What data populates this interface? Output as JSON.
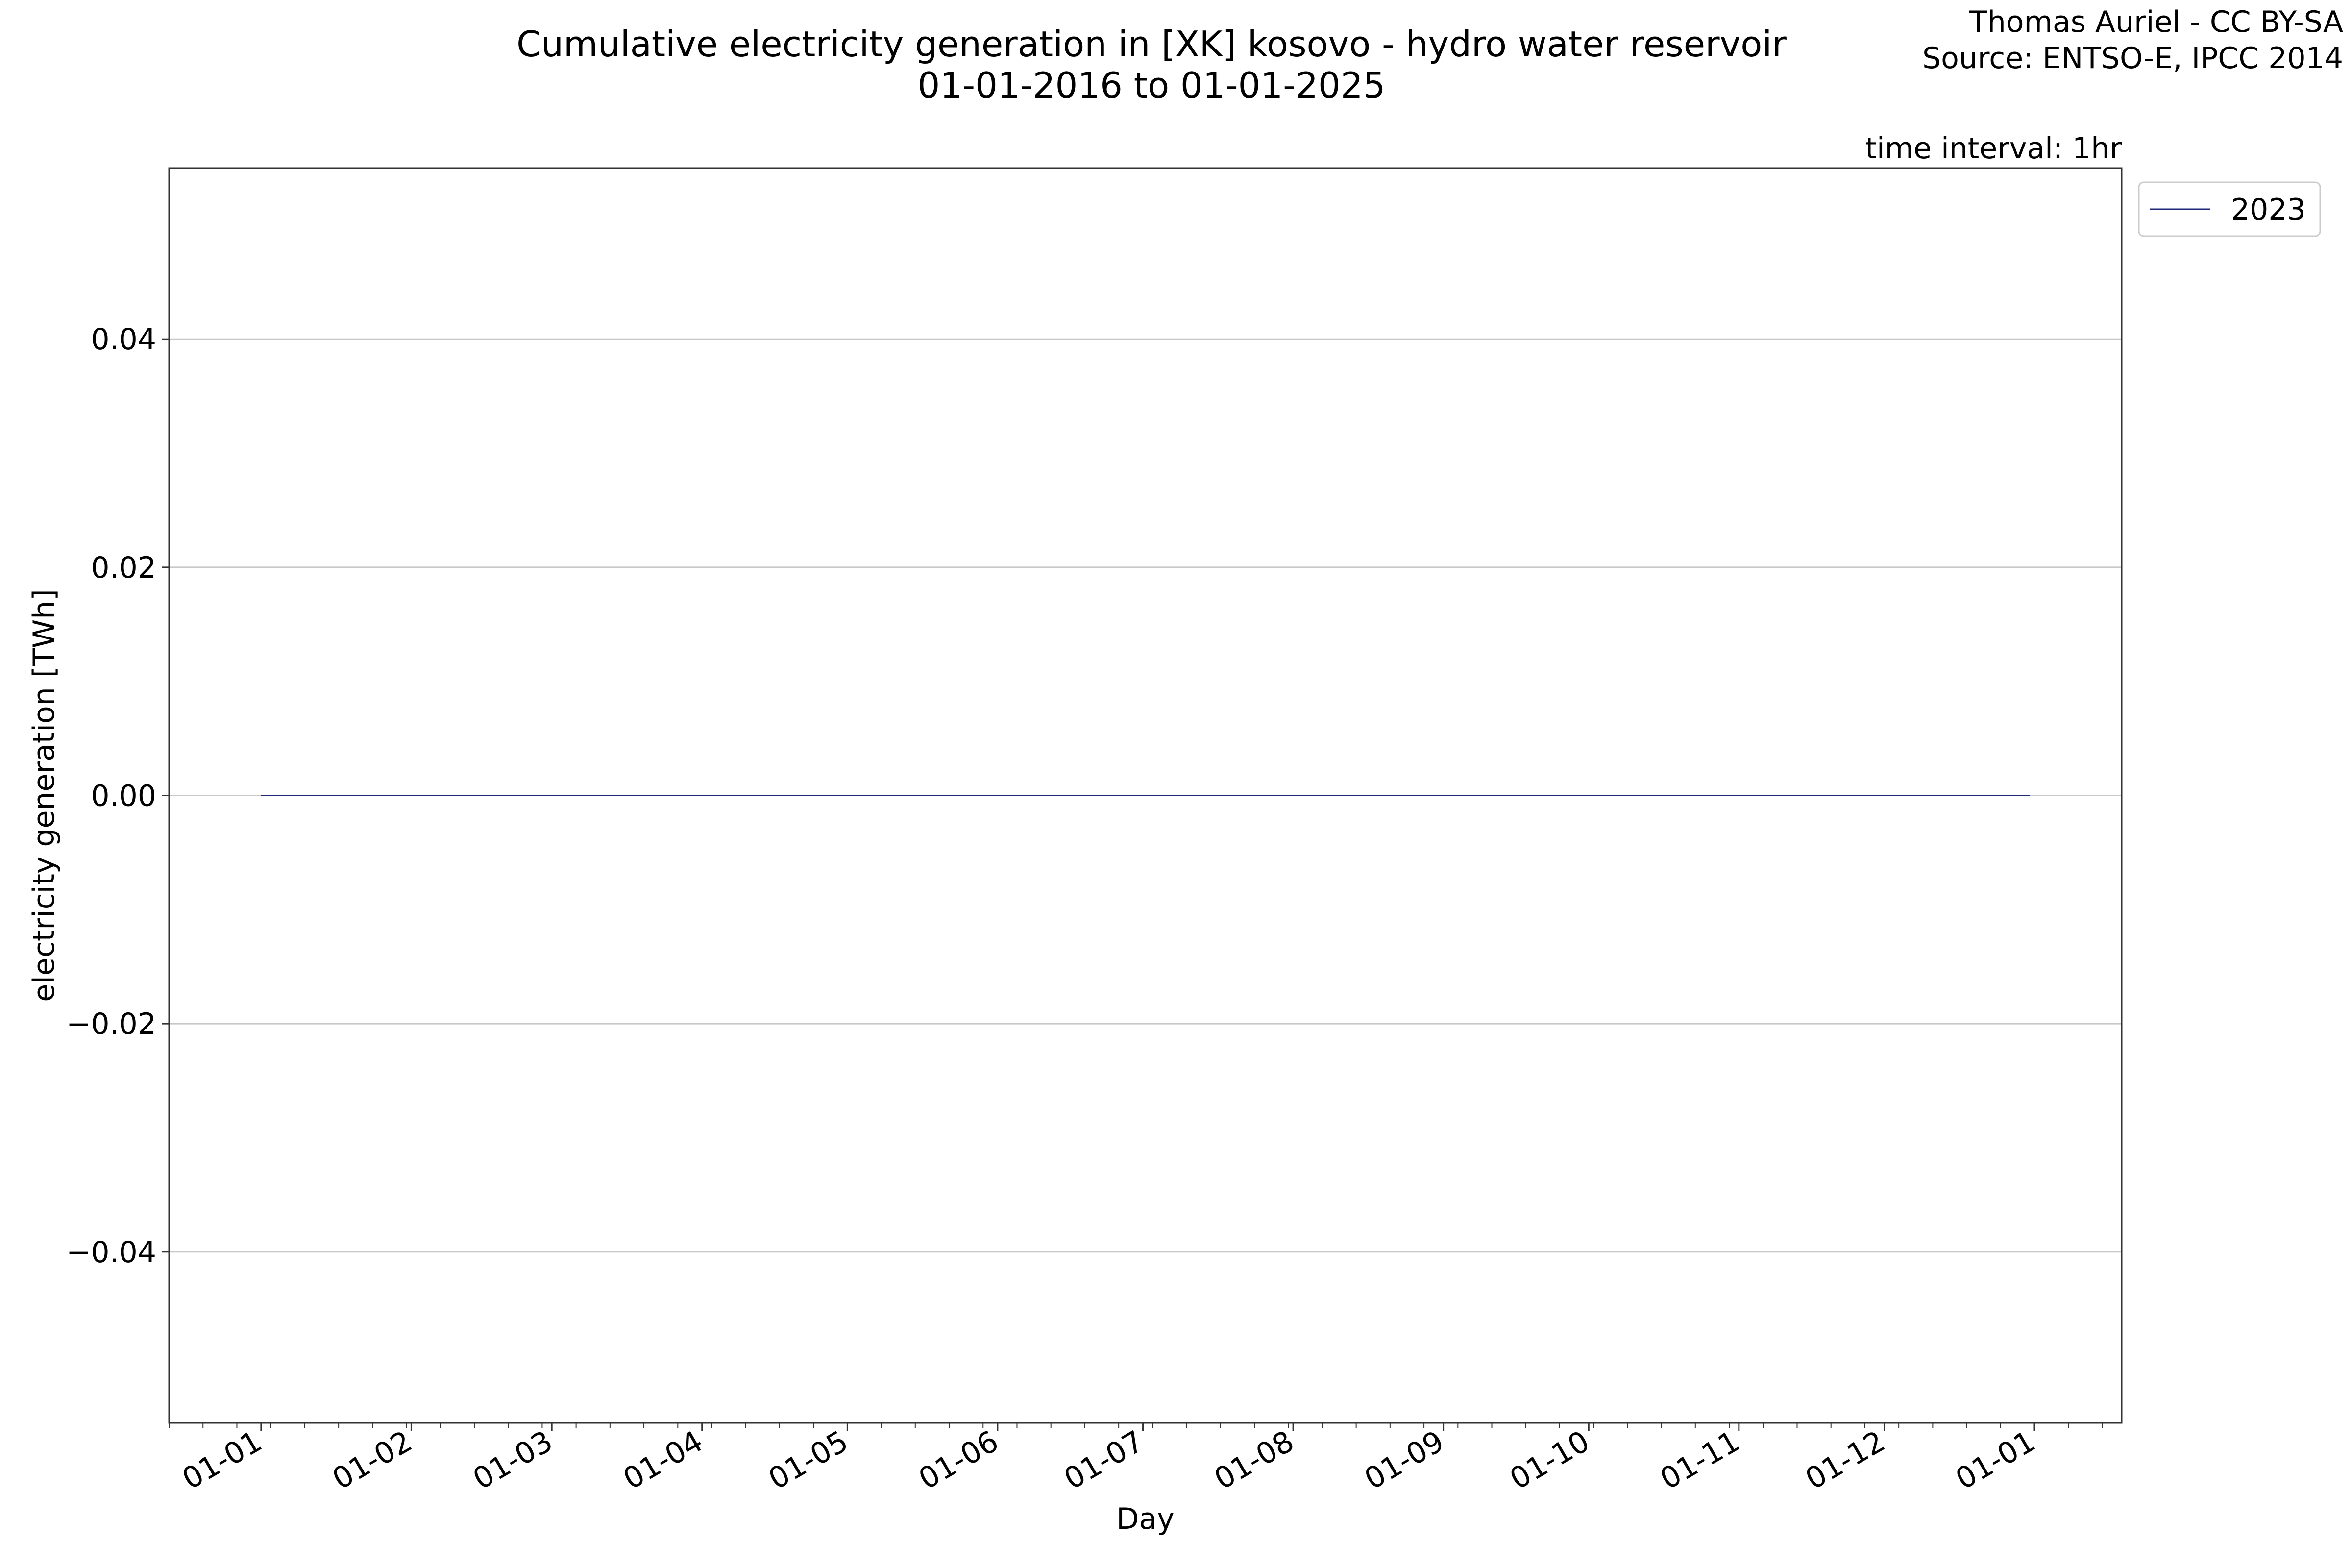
{
  "chart_data": {
    "type": "line",
    "title": "Cumulative electricity generation in [XK] kosovo - hydro water reservoir",
    "subtitle": "01-01-2016 to 01-01-2025",
    "credits": [
      "Thomas Auriel - CC BY-SA",
      "Source: ENTSO-E, IPCC 2014"
    ],
    "annotation": "time interval: 1hr",
    "xlabel": "Day",
    "ylabel": "electricity generation [TWh]",
    "ylim": [
      -0.055,
      0.055
    ],
    "yticks": [
      -0.04,
      -0.02,
      0.0,
      0.02,
      0.04
    ],
    "ytick_labels": [
      "−0.04",
      "−0.02",
      "0.00",
      "0.02",
      "0.04"
    ],
    "xlim": [
      "2023-12-13",
      "2025-01-19"
    ],
    "xticks": [
      "2024-01-01",
      "2024-02-01",
      "2024-03-01",
      "2024-04-01",
      "2024-05-01",
      "2024-06-01",
      "2024-07-01",
      "2024-08-01",
      "2024-09-01",
      "2024-10-01",
      "2024-11-01",
      "2024-12-01",
      "2025-01-01"
    ],
    "xtick_labels": [
      "01-01",
      "01-02",
      "01-03",
      "01-04",
      "01-05",
      "01-06",
      "01-07",
      "01-08",
      "01-09",
      "01-10",
      "01-11",
      "01-12",
      "01-01"
    ],
    "grid": "y",
    "legend_position": "outside-top-right",
    "series": [
      {
        "name": "2023",
        "color": "#1f2a7a",
        "x": [
          "2024-01-01",
          "2024-02-01",
          "2024-03-01",
          "2024-04-01",
          "2024-05-01",
          "2024-06-01",
          "2024-07-01",
          "2024-08-01",
          "2024-09-01",
          "2024-10-01",
          "2024-11-01",
          "2024-12-01",
          "2024-12-31"
        ],
        "y": [
          0,
          0,
          0,
          0,
          0,
          0,
          0,
          0,
          0,
          0,
          0,
          0,
          0
        ]
      }
    ]
  }
}
